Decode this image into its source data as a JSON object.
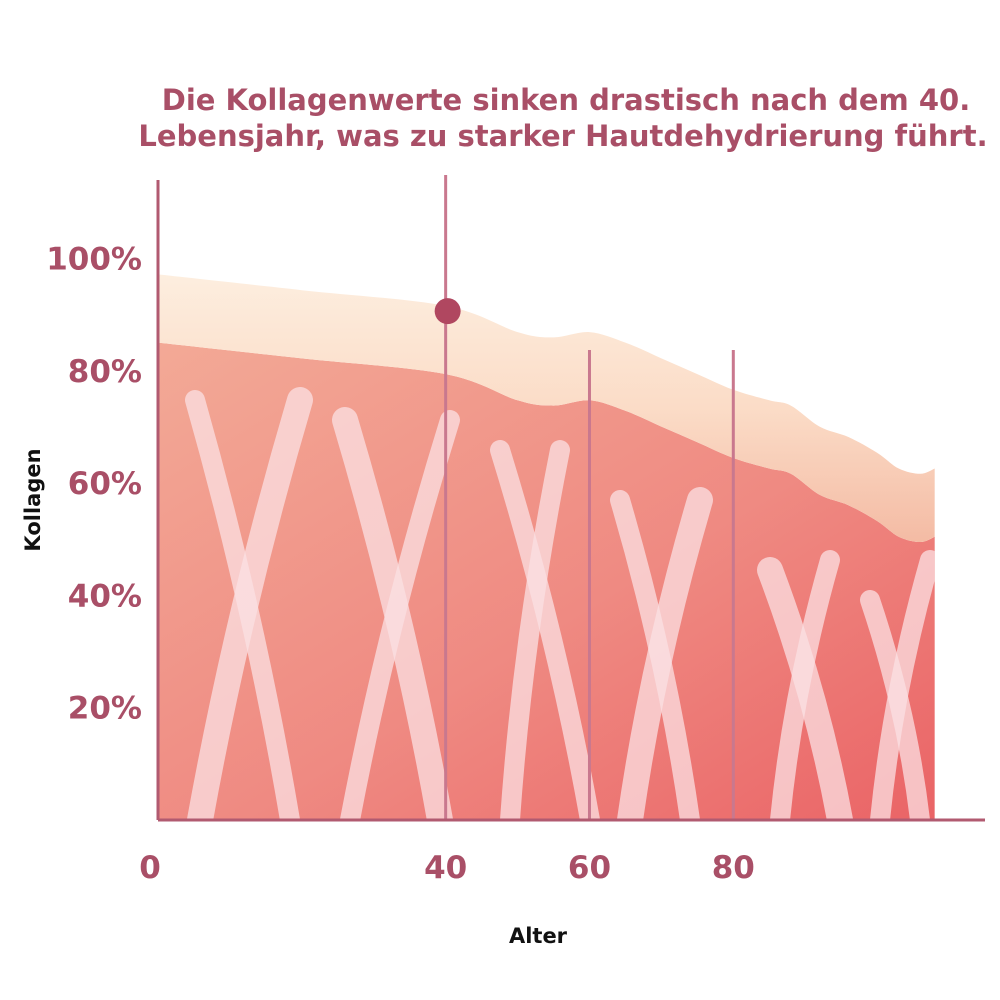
{
  "chart_data": {
    "type": "area",
    "title_lines": [
      "Die Kollagenwerte sinken drastisch nach dem 40.",
      "Lebensjahr, was zu starker Hautdehydrierung führt."
    ],
    "xlabel": "Alter",
    "ylabel": "Kollagen",
    "x_ticks": [
      {
        "value": 0,
        "label": "0"
      },
      {
        "value": 40,
        "label": "40"
      },
      {
        "value": 60,
        "label": "60"
      },
      {
        "value": 80,
        "label": "80"
      }
    ],
    "y_ticks": [
      {
        "value": 20,
        "label": "20%"
      },
      {
        "value": 40,
        "label": "40%"
      },
      {
        "value": 60,
        "label": "60%"
      },
      {
        "value": 80,
        "label": "80%"
      },
      {
        "value": 100,
        "label": "100%"
      }
    ],
    "xlim": [
      0,
      115
    ],
    "ylim": [
      0,
      122
    ],
    "series": [
      {
        "x": [
          0,
          20,
          40,
          50,
          55,
          60,
          65,
          70,
          75,
          80,
          85,
          88,
          92,
          96,
          100,
          103,
          106,
          108
        ],
        "y": [
          91,
          88,
          85,
          80,
          79,
          80,
          78,
          75,
          72,
          69,
          67,
          66,
          62,
          60,
          57,
          54,
          53,
          54
        ]
      }
    ],
    "skin_band_thickness": 13,
    "highlight_point": {
      "x": 40,
      "y": 97
    },
    "vertical_guides": [
      40,
      60,
      80
    ],
    "colors": {
      "text": "#a94f67",
      "axis": "#b15a70",
      "guide": "#c9788e",
      "marker": "#b04760",
      "area_top": "#f2a391",
      "area_bottom": "#ec6e6c",
      "skin_top": "#fde9d8",
      "skin_bottom": "#f6c4ae",
      "fibers": "#fbe0e3"
    }
  }
}
